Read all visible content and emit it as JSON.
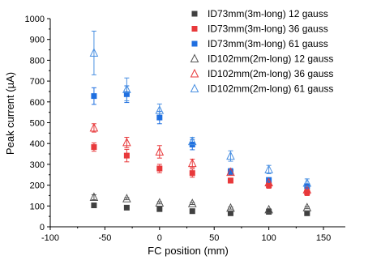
{
  "chart_data": {
    "type": "scatter",
    "xlabel": "FC position (mm)",
    "ylabel": "Peak current (µA)",
    "xlim": [
      -100,
      170
    ],
    "ylim": [
      0,
      1000
    ],
    "x_ticks": [
      "-100",
      "-50",
      "0",
      "50",
      "100",
      "150"
    ],
    "y_ticks": [
      "0",
      "100",
      "200",
      "300",
      "400",
      "500",
      "600",
      "700",
      "800",
      "900",
      "1000"
    ],
    "grid": false,
    "legend_position": "top-right",
    "x": [
      -60,
      -30,
      0,
      30,
      65,
      100,
      135
    ],
    "series": [
      {
        "name": "ID73mm(3m-long) 12 gauss",
        "marker": "filled-square",
        "color": "#404040",
        "values": [
          103,
          92,
          85,
          75,
          65,
          72,
          65
        ],
        "errors": [
          0,
          0,
          0,
          0,
          0,
          0,
          0
        ]
      },
      {
        "name": "ID73mm(3m-long) 36 gauss",
        "marker": "filled-square",
        "color": "#e8393b",
        "values": [
          383,
          342,
          280,
          258,
          222,
          200,
          165
        ],
        "errors": [
          20,
          30,
          20,
          20,
          12,
          15,
          15
        ]
      },
      {
        "name": "ID73mm(3m-long) 61 gauss",
        "marker": "filled-square",
        "color": "#1f6fe0",
        "values": [
          628,
          637,
          525,
          395,
          265,
          225,
          195
        ],
        "errors": [
          40,
          40,
          30,
          25,
          15,
          10,
          10
        ]
      },
      {
        "name": "ID102mm(2m-long) 12 gauss",
        "marker": "open-triangle",
        "color": "#555555",
        "values": [
          142,
          135,
          115,
          112,
          90,
          82,
          92
        ],
        "errors": [
          12,
          5,
          5,
          5,
          5,
          5,
          5
        ]
      },
      {
        "name": "ID102mm(2m-long) 36 gauss",
        "marker": "open-triangle",
        "color": "#e8393b",
        "values": [
          475,
          405,
          360,
          305,
          262,
          212,
          178
        ],
        "errors": [
          20,
          25,
          30,
          20,
          10,
          15,
          15
        ]
      },
      {
        "name": "ID102mm(2m-long) 61 gauss",
        "marker": "open-triangle",
        "color": "#4a90e2",
        "values": [
          835,
          660,
          560,
          410,
          340,
          275,
          210
        ],
        "errors": [
          105,
          55,
          30,
          20,
          25,
          20,
          20
        ]
      }
    ]
  }
}
